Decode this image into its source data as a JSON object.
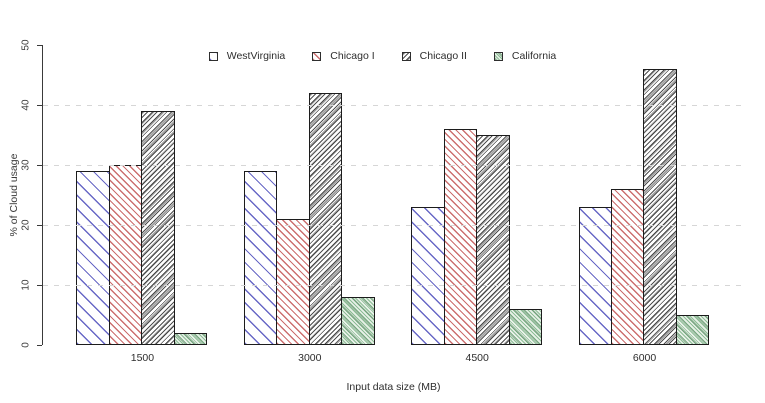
{
  "chart_data": {
    "type": "bar",
    "title": "",
    "xlabel": "Input data size (MB)",
    "ylabel": "% of Cloud usage",
    "categories": [
      "1500",
      "3000",
      "4500",
      "6000"
    ],
    "series": [
      {
        "name": "WestVirginia",
        "values": [
          29,
          29,
          23,
          23
        ],
        "hatch": "sparse backslash diagonal",
        "line_color": "#6868c6"
      },
      {
        "name": "Chicago I",
        "values": [
          30,
          21,
          36,
          26
        ],
        "hatch": "medium backslash diagonal",
        "line_color": "#cc6f6f"
      },
      {
        "name": "Chicago II",
        "values": [
          39,
          42,
          35,
          46
        ],
        "hatch": "dense forward-slash diagonal",
        "line_color": "#3c3c3c"
      },
      {
        "name": "California",
        "values": [
          2,
          8,
          6,
          5
        ],
        "hatch": "fine dense diagonal",
        "line_color": "#8cbd95"
      }
    ],
    "ylim": [
      0,
      50
    ],
    "yticks": [
      0,
      10,
      20,
      30,
      40,
      50
    ],
    "gridlines": [
      10,
      20,
      30,
      40
    ],
    "grid_style": "dashed light-gray horizontal",
    "legend_position": "top center",
    "bar_outline_color": "#1c1c1c",
    "axis_color": "#3a3a3a",
    "grid_color": "#d6d6d6",
    "background": "#ffffff"
  }
}
